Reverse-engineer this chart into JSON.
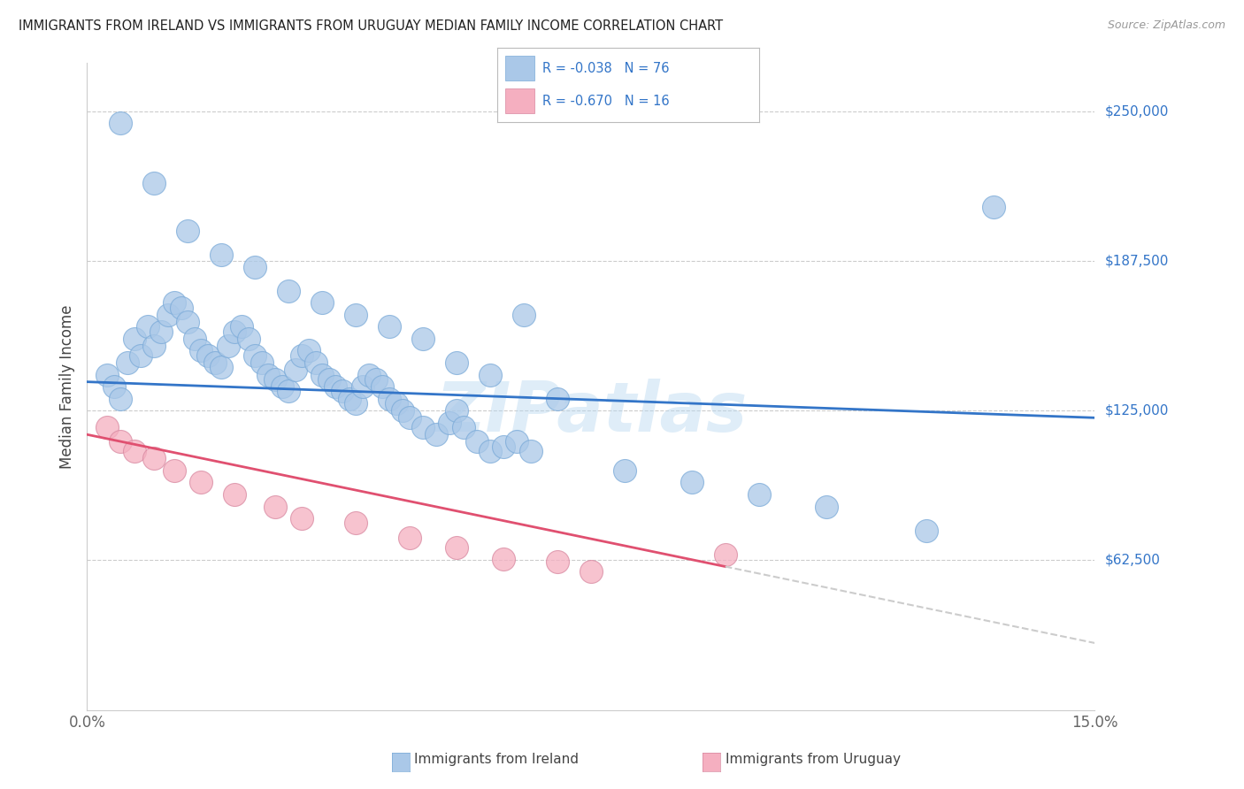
{
  "title": "IMMIGRANTS FROM IRELAND VS IMMIGRANTS FROM URUGUAY MEDIAN FAMILY INCOME CORRELATION CHART",
  "source": "Source: ZipAtlas.com",
  "ylabel": "Median Family Income",
  "y_tick_labels": [
    "$250,000",
    "$187,500",
    "$125,000",
    "$62,500"
  ],
  "y_tick_values": [
    250000,
    187500,
    125000,
    62500
  ],
  "legend1_label": "R = -0.038   N = 76",
  "legend2_label": "R = -0.670   N = 16",
  "legend1_color": "#aac8e8",
  "legend2_color": "#f5afc0",
  "blue_line_color": "#3375c8",
  "pink_line_color": "#e05070",
  "dashed_line_color": "#cccccc",
  "watermark": "ZIPatlas",
  "ireland_x": [
    0.3,
    0.4,
    0.5,
    0.6,
    0.7,
    0.8,
    0.9,
    1.0,
    1.1,
    1.2,
    1.3,
    1.4,
    1.5,
    1.6,
    1.7,
    1.8,
    1.9,
    2.0,
    2.1,
    2.2,
    2.3,
    2.4,
    2.5,
    2.6,
    2.7,
    2.8,
    2.9,
    3.0,
    3.1,
    3.2,
    3.3,
    3.4,
    3.5,
    3.6,
    3.7,
    3.8,
    3.9,
    4.0,
    4.1,
    4.2,
    4.3,
    4.4,
    4.5,
    4.6,
    4.7,
    4.8,
    5.0,
    5.2,
    5.4,
    5.5,
    5.6,
    5.8,
    6.0,
    6.2,
    6.4,
    6.6,
    0.5,
    1.0,
    1.5,
    2.0,
    2.5,
    3.0,
    3.5,
    4.0,
    4.5,
    5.0,
    5.5,
    6.0,
    6.5,
    7.0,
    8.0,
    9.0,
    10.0,
    11.0,
    12.5,
    13.5
  ],
  "ireland_y": [
    140000,
    135000,
    130000,
    145000,
    155000,
    148000,
    160000,
    152000,
    158000,
    165000,
    170000,
    168000,
    162000,
    155000,
    150000,
    148000,
    145000,
    143000,
    152000,
    158000,
    160000,
    155000,
    148000,
    145000,
    140000,
    138000,
    135000,
    133000,
    142000,
    148000,
    150000,
    145000,
    140000,
    138000,
    135000,
    133000,
    130000,
    128000,
    135000,
    140000,
    138000,
    135000,
    130000,
    128000,
    125000,
    122000,
    118000,
    115000,
    120000,
    125000,
    118000,
    112000,
    108000,
    110000,
    112000,
    108000,
    245000,
    220000,
    200000,
    190000,
    185000,
    175000,
    170000,
    165000,
    160000,
    155000,
    145000,
    140000,
    165000,
    130000,
    100000,
    95000,
    90000,
    85000,
    75000,
    210000
  ],
  "uruguay_x": [
    0.3,
    0.5,
    0.7,
    1.0,
    1.3,
    1.7,
    2.2,
    2.8,
    3.2,
    4.0,
    4.8,
    5.5,
    6.2,
    7.0,
    7.5,
    9.5
  ],
  "uruguay_y": [
    118000,
    112000,
    108000,
    105000,
    100000,
    95000,
    90000,
    85000,
    80000,
    78000,
    72000,
    68000,
    63000,
    62000,
    58000,
    65000
  ],
  "ireland_trend_x0": 0,
  "ireland_trend_y0": 137000,
  "ireland_trend_x1": 15,
  "ireland_trend_y1": 122000,
  "uruguay_trend_x0": 0,
  "uruguay_trend_y0": 115000,
  "uruguay_trend_x1": 15,
  "uruguay_trend_y1": 28000,
  "uruguay_solid_end": 9.5,
  "xlim": [
    0,
    15
  ],
  "ylim": [
    0,
    270000
  ],
  "background_color": "#ffffff",
  "grid_color": "#cccccc"
}
